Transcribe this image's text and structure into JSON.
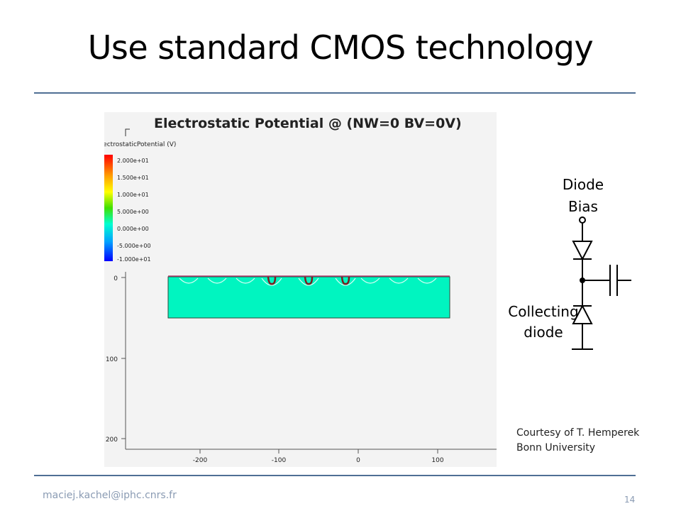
{
  "slide": {
    "title": "Use standard CMOS technology",
    "footer_email": "maciej.kachel@iphc.cnrs.fr",
    "page_number": "14"
  },
  "simulation": {
    "title": "Electrostatic Potential @ (NW=0 BV=0V)",
    "legend_title": "ElectrostaticPotential (V)",
    "legend_ticks": [
      "2.000e+01",
      "1.500e+01",
      "1.000e+01",
      "5.000e+00",
      "0.000e+00",
      "-5.000e+00",
      "-1.000e+01"
    ],
    "y_ticks": [
      "0",
      "100",
      "200"
    ],
    "x_ticks": [
      "-200",
      "-100",
      "0",
      "100"
    ],
    "device_color": "#00f5c0"
  },
  "circuit": {
    "diode_bias_label_1": "Diode",
    "diode_bias_label_2": "Bias",
    "collecting_label_1": "Collecting",
    "collecting_label_2": "diode"
  },
  "credit": {
    "line1": "Courtesy of T. Hemperek",
    "line2": "Bonn University"
  }
}
